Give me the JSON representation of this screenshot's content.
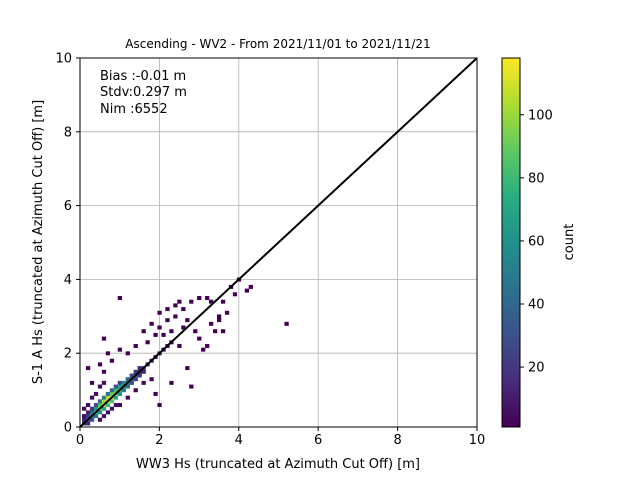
{
  "chart_data": {
    "type": "heatmap",
    "title": "Ascending - WV2 - From 2021/11/01 to 2021/11/21",
    "xlabel": "WW3 Hs (truncated at Azimuth Cut Off) [m]",
    "ylabel": "S-1 A Hs (truncated at Azimuth Cut Off) [m]",
    "xlim": [
      0,
      10
    ],
    "ylim": [
      0,
      10
    ],
    "x_ticks": [
      "0",
      "2",
      "4",
      "6",
      "8",
      "10"
    ],
    "y_ticks": [
      "0",
      "2",
      "4",
      "6",
      "8",
      "10"
    ],
    "grid": true,
    "annotations": [
      "Bias :-0.01 m",
      "Stdv:0.297 m",
      "Nim :6552"
    ],
    "reference_line": {
      "x": [
        0,
        10
      ],
      "y": [
        0,
        10
      ],
      "color": "#000000"
    },
    "colorbar": {
      "label": "count",
      "colormap": "viridis",
      "range": [
        1,
        118
      ],
      "ticks": [
        "20",
        "40",
        "60",
        "80",
        "100"
      ],
      "tick_values": [
        20,
        40,
        60,
        80,
        100
      ]
    },
    "bin_width": 0.1,
    "cells": [
      [
        0.1,
        0.1,
        18
      ],
      [
        0.1,
        0.2,
        12
      ],
      [
        0.1,
        0.3,
        6
      ],
      [
        0.2,
        0.1,
        14
      ],
      [
        0.2,
        0.2,
        35
      ],
      [
        0.2,
        0.3,
        22
      ],
      [
        0.2,
        0.4,
        10
      ],
      [
        0.3,
        0.2,
        28
      ],
      [
        0.3,
        0.3,
        55
      ],
      [
        0.3,
        0.4,
        40
      ],
      [
        0.3,
        0.5,
        18
      ],
      [
        0.4,
        0.3,
        45
      ],
      [
        0.4,
        0.4,
        75
      ],
      [
        0.4,
        0.5,
        60
      ],
      [
        0.4,
        0.6,
        28
      ],
      [
        0.5,
        0.4,
        58
      ],
      [
        0.5,
        0.5,
        95
      ],
      [
        0.5,
        0.6,
        85
      ],
      [
        0.5,
        0.7,
        40
      ],
      [
        0.6,
        0.5,
        70
      ],
      [
        0.6,
        0.6,
        110
      ],
      [
        0.6,
        0.7,
        100
      ],
      [
        0.6,
        0.8,
        50
      ],
      [
        0.7,
        0.6,
        80
      ],
      [
        0.7,
        0.7,
        118
      ],
      [
        0.7,
        0.8,
        105
      ],
      [
        0.7,
        0.9,
        45
      ],
      [
        0.8,
        0.7,
        85
      ],
      [
        0.8,
        0.8,
        112
      ],
      [
        0.8,
        0.9,
        90
      ],
      [
        0.8,
        1.0,
        38
      ],
      [
        0.9,
        0.8,
        70
      ],
      [
        0.9,
        0.9,
        98
      ],
      [
        0.9,
        1.0,
        80
      ],
      [
        0.9,
        1.1,
        30
      ],
      [
        1.0,
        0.9,
        60
      ],
      [
        1.0,
        1.0,
        85
      ],
      [
        1.0,
        1.1,
        65
      ],
      [
        1.0,
        1.2,
        25
      ],
      [
        1.1,
        1.0,
        50
      ],
      [
        1.1,
        1.1,
        70
      ],
      [
        1.1,
        1.2,
        55
      ],
      [
        1.2,
        1.1,
        40
      ],
      [
        1.2,
        1.2,
        55
      ],
      [
        1.2,
        1.3,
        38
      ],
      [
        1.3,
        1.2,
        30
      ],
      [
        1.3,
        1.3,
        45
      ],
      [
        1.3,
        1.4,
        28
      ],
      [
        1.4,
        1.3,
        22
      ],
      [
        1.4,
        1.4,
        35
      ],
      [
        1.4,
        1.5,
        20
      ],
      [
        1.5,
        1.4,
        18
      ],
      [
        1.5,
        1.5,
        26
      ],
      [
        1.5,
        1.6,
        15
      ],
      [
        1.6,
        1.5,
        12
      ],
      [
        1.6,
        1.6,
        20
      ],
      [
        1.7,
        1.7,
        15
      ],
      [
        1.8,
        1.8,
        12
      ],
      [
        1.9,
        1.9,
        10
      ],
      [
        2.0,
        2.0,
        8
      ],
      [
        2.1,
        2.1,
        6
      ],
      [
        2.2,
        2.2,
        5
      ],
      [
        2.3,
        2.3,
        4
      ],
      [
        0.1,
        0.5,
        3
      ],
      [
        0.2,
        0.6,
        4
      ],
      [
        0.3,
        0.8,
        3
      ],
      [
        0.4,
        0.9,
        5
      ],
      [
        0.5,
        1.1,
        3
      ],
      [
        0.6,
        1.2,
        4
      ],
      [
        0.6,
        1.5,
        2
      ],
      [
        0.5,
        0.2,
        5
      ],
      [
        0.6,
        0.3,
        6
      ],
      [
        0.7,
        0.4,
        5
      ],
      [
        0.8,
        0.5,
        6
      ],
      [
        0.9,
        0.6,
        4
      ],
      [
        1.0,
        0.6,
        3
      ],
      [
        1.2,
        0.8,
        3
      ],
      [
        1.4,
        1.0,
        2
      ],
      [
        1.6,
        1.2,
        3
      ],
      [
        1.8,
        1.3,
        2
      ]
    ],
    "sparse_cells": [
      [
        0.6,
        2.4
      ],
      [
        1.0,
        3.5
      ],
      [
        0.2,
        1.6
      ],
      [
        4.0,
        4.0
      ],
      [
        3.8,
        3.8
      ],
      [
        4.3,
        3.8
      ],
      [
        5.2,
        2.8
      ],
      [
        3.4,
        2.6
      ],
      [
        3.6,
        2.6
      ],
      [
        3.0,
        3.5
      ],
      [
        3.2,
        3.5
      ],
      [
        2.8,
        3.4
      ],
      [
        2.6,
        3.2
      ],
      [
        2.5,
        3.4
      ],
      [
        3.9,
        3.6
      ],
      [
        4.2,
        3.7
      ],
      [
        3.5,
        3.0
      ],
      [
        3.3,
        2.8
      ],
      [
        2.8,
        1.1
      ],
      [
        2.0,
        0.6
      ],
      [
        1.9,
        0.9
      ],
      [
        2.3,
        1.2
      ],
      [
        2.7,
        1.6
      ],
      [
        3.1,
        2.1
      ],
      [
        3.2,
        2.2
      ],
      [
        3.5,
        2.9
      ],
      [
        3.7,
        3.1
      ],
      [
        2.4,
        3.0
      ],
      [
        2.2,
        2.9
      ],
      [
        2.0,
        2.7
      ],
      [
        1.9,
        2.5
      ],
      [
        1.7,
        2.3
      ],
      [
        1.4,
        2.2
      ],
      [
        1.2,
        2.0
      ],
      [
        1.0,
        2.1
      ],
      [
        0.8,
        1.8
      ],
      [
        0.3,
        1.2
      ],
      [
        0.5,
        1.7
      ],
      [
        0.7,
        2.0
      ],
      [
        2.6,
        2.7
      ],
      [
        2.9,
        2.6
      ],
      [
        3.0,
        2.4
      ],
      [
        2.5,
        2.2
      ],
      [
        2.7,
        2.9
      ],
      [
        3.3,
        3.4
      ],
      [
        3.6,
        3.4
      ],
      [
        2.1,
        2.5
      ],
      [
        2.3,
        2.6
      ],
      [
        1.6,
        2.6
      ],
      [
        1.8,
        2.8
      ],
      [
        2.0,
        3.1
      ],
      [
        2.2,
        3.2
      ],
      [
        2.4,
        3.3
      ]
    ]
  }
}
